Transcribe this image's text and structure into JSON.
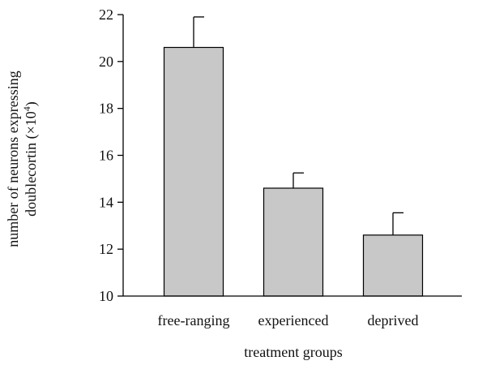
{
  "chart_data": {
    "type": "bar",
    "categories": [
      "free-ranging",
      "experienced",
      "deprived"
    ],
    "values": [
      20.6,
      14.6,
      12.6
    ],
    "error_upper": [
      21.9,
      15.25,
      13.55
    ],
    "xlabel": "treatment groups",
    "ylabel_line1": "number of neurons expressing",
    "ylabel_line2": "doublecortin (×10",
    "ylabel_exponent": "4",
    "ylabel_close": ")",
    "ylim": [
      10,
      22
    ],
    "yticks": [
      10,
      12,
      14,
      16,
      18,
      20,
      22
    ],
    "grid": false,
    "legend": "none",
    "colors": {
      "bar_fill": "#c8c8c8",
      "bar_stroke": "#000000",
      "axis": "#000000"
    }
  }
}
